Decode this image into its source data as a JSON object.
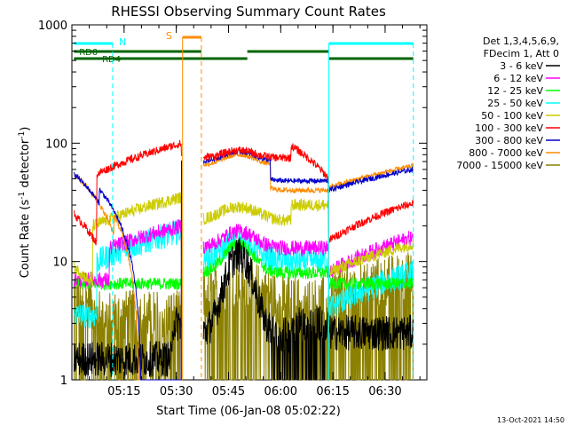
{
  "chart_data": {
    "type": "line",
    "title": "RHESSI Observing Summary Count Rates",
    "xlabel": "Start Time (06-Jan-08 05:02:22)",
    "ylabel_main": "Count Rate (s",
    "ylabel_sup": "-1",
    "ylabel_tail": " detector",
    "ylabel_sup2": "-1",
    "ylabel_close": ")",
    "yscale": "log",
    "ylim": [
      1,
      1000
    ],
    "xlim_minutes": [
      5.0,
      6.7
    ],
    "xtick_labels": [
      "05:15",
      "05:30",
      "05:45",
      "06:00",
      "06:15",
      "06:30"
    ],
    "xtick_values": [
      5.25,
      5.5,
      5.75,
      6.0,
      6.25,
      6.5
    ],
    "ytick_labels": [
      "1",
      "10",
      "100",
      "1000"
    ],
    "ytick_values": [
      1,
      10,
      100,
      1000
    ],
    "legend_header": [
      "Det 1,3,4,5,6,9,",
      "FDecim 1, Att 0"
    ],
    "legend_placement": "right",
    "series": [
      {
        "name": "3 - 6 keV",
        "color": "#000000"
      },
      {
        "name": "6 - 12 keV",
        "color": "#ff00ff"
      },
      {
        "name": "12 - 25 keV",
        "color": "#00ff00"
      },
      {
        "name": "25 - 50 keV",
        "color": "#00ffff"
      },
      {
        "name": "50 - 100 keV",
        "color": "#cccc00"
      },
      {
        "name": "100 - 300 keV",
        "color": "#ff0000"
      },
      {
        "name": "300 - 800 keV",
        "color": "#0000cc"
      },
      {
        "name": "800 - 7000 keV",
        "color": "#ff8c00"
      },
      {
        "name": "7000 - 15000 keV",
        "color": "#8b8000"
      }
    ],
    "state_bars": [
      {
        "label": "N",
        "color": "#00ffff"
      },
      {
        "label": "S",
        "color": "#ff8c00"
      },
      {
        "label": "RD0",
        "color": "#006400"
      },
      {
        "label": "RD4",
        "color": "#006400"
      }
    ],
    "timestamp": "13-Oct-2021 14:50"
  }
}
